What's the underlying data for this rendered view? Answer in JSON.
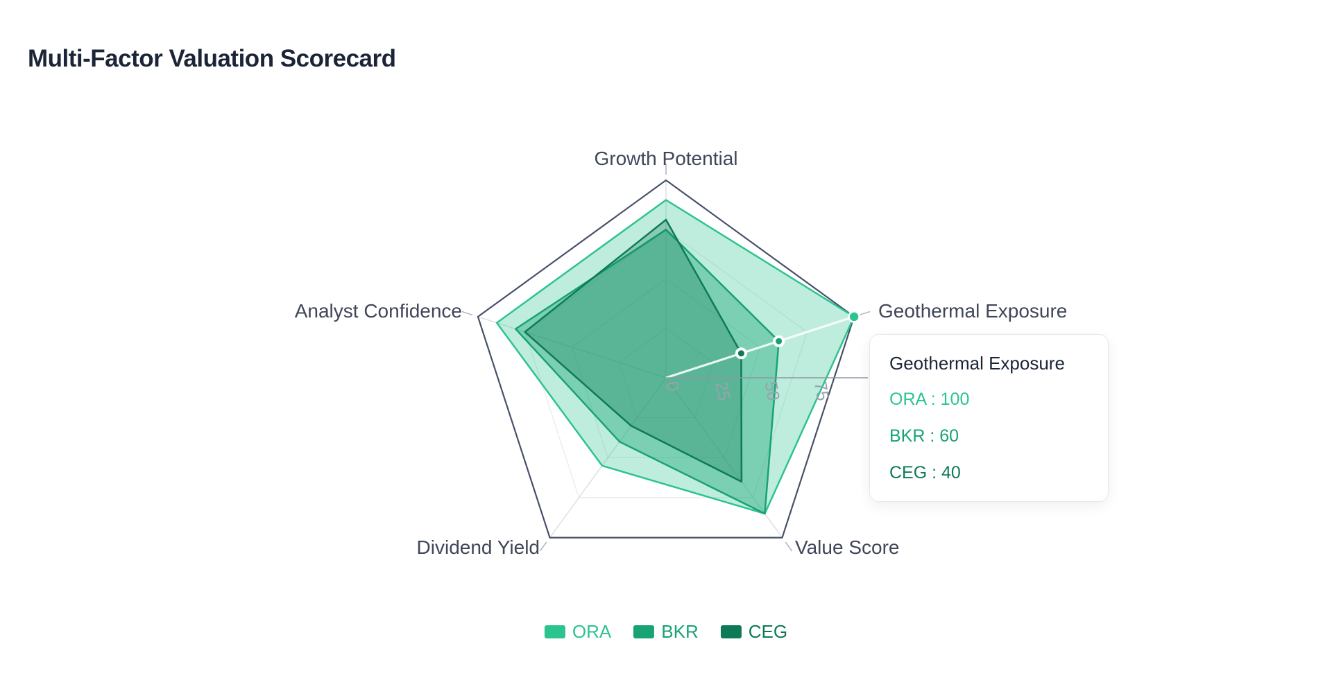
{
  "title": "Multi-Factor Valuation Scorecard",
  "chart_data": {
    "type": "radar",
    "title": "Multi-Factor Valuation Scorecard",
    "categories": [
      "Growth Potential",
      "Geothermal Exposure",
      "Value Score",
      "Dividend Yield",
      "Analyst Confidence"
    ],
    "max": 100,
    "ticks": [
      0,
      25,
      50,
      75
    ],
    "series": [
      {
        "name": "ORA",
        "color": "#2cc48e",
        "values": [
          90,
          100,
          85,
          55,
          90
        ]
      },
      {
        "name": "BKR",
        "color": "#17a373",
        "values": [
          75,
          60,
          85,
          40,
          80
        ]
      },
      {
        "name": "CEG",
        "color": "#0d7a57",
        "values": [
          80,
          40,
          65,
          30,
          75
        ]
      }
    ],
    "fill_opacities": [
      0.3,
      0.4,
      0.3
    ],
    "highlight": {
      "axis": "Geothermal Exposure",
      "axis_index": 1
    },
    "legend_position": "bottom",
    "grid": true
  },
  "tooltip": {
    "title": "Geothermal Exposure",
    "separator": " : ",
    "items": [
      {
        "label": "ORA",
        "value": "100"
      },
      {
        "label": "BKR",
        "value": "60"
      },
      {
        "label": "CEG",
        "value": "40"
      }
    ]
  },
  "legend": {
    "items": [
      {
        "label": "ORA"
      },
      {
        "label": "BKR"
      },
      {
        "label": "CEG"
      }
    ]
  }
}
